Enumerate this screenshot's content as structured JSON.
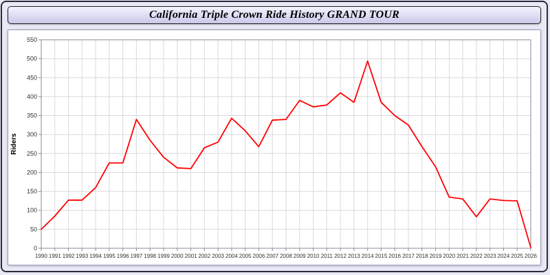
{
  "header": {
    "title": "California Triple Crown Ride History GRAND TOUR"
  },
  "chart_data": {
    "type": "line",
    "title": "California Triple Crown Ride History GRAND TOUR",
    "xlabel": "",
    "ylabel": "Riders",
    "ylim": [
      0,
      550
    ],
    "ytick_step": 50,
    "grid": true,
    "legend": "none",
    "line_color": "#ff0000",
    "x": [
      1990,
      1991,
      1992,
      1993,
      1994,
      1995,
      1996,
      1997,
      1998,
      1999,
      2000,
      2001,
      2002,
      2003,
      2004,
      2005,
      2006,
      2007,
      2008,
      2009,
      2010,
      2011,
      2012,
      2013,
      2014,
      2015,
      2016,
      2017,
      2018,
      2019,
      2020,
      2021,
      2022,
      2023,
      2024,
      2025,
      2026
    ],
    "values": [
      50,
      85,
      127,
      127,
      160,
      225,
      225,
      340,
      285,
      240,
      212,
      210,
      265,
      280,
      343,
      310,
      268,
      338,
      340,
      390,
      373,
      378,
      410,
      385,
      494,
      385,
      350,
      325,
      268,
      215,
      135,
      130,
      83,
      130,
      126,
      125,
      2
    ]
  },
  "colors": {
    "page_background": "#e9e9f6",
    "plot_background": "#ffffff",
    "grid": "#d9d9e0",
    "axis_frame": "#8a8a9a",
    "tick_text": "#333333",
    "line": "#ff0000"
  }
}
